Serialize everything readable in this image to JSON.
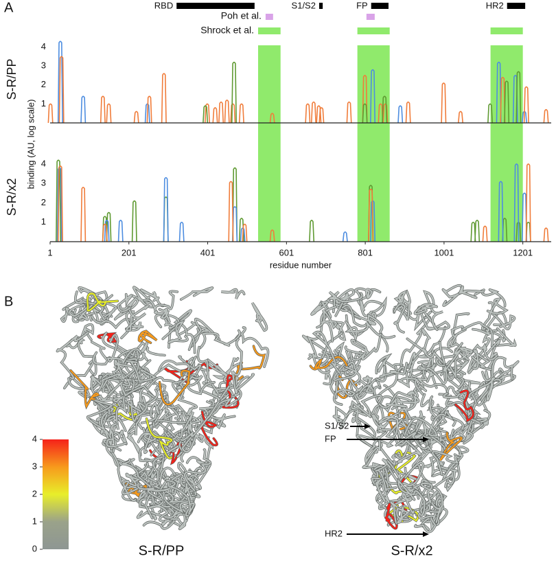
{
  "panel_labels": [
    "A",
    "B"
  ],
  "domains": [
    {
      "label": "RBD",
      "start": 322,
      "end": 520
    },
    {
      "label": "S1/S2",
      "start": 684,
      "end": 693
    },
    {
      "label": "FP",
      "start": 816,
      "end": 860
    },
    {
      "label": "HR2",
      "start": 1161,
      "end": 1207
    }
  ],
  "regions": [
    {
      "label": "Poh et al.",
      "color": "#d9a3e8",
      "spans": [
        [
          548,
          567
        ],
        [
          804,
          825
        ]
      ]
    },
    {
      "label": "Shrock et al.",
      "color": "#90ea6c",
      "spans": [
        [
          529,
          586
        ],
        [
          781,
          863
        ],
        [
          1119,
          1201
        ]
      ]
    }
  ],
  "chart_data": [
    {
      "type": "spike",
      "panel_label": "S-R/PP",
      "ylabel": "binding (AU, log scale)",
      "xlim": [
        1,
        1273
      ],
      "ylim": [
        0,
        4.6
      ],
      "yticks": [
        1,
        2,
        3,
        4
      ],
      "series": [
        {
          "color": "#4d8de0",
          "x": [
            27,
            85,
            248,
            820,
            890,
            1140,
            1182,
            1205
          ],
          "values": [
            4.3,
            1.4,
            1.0,
            2.8,
            0.9,
            3.2,
            2.5,
            0.6
          ]
        },
        {
          "color": "#f07c3a",
          "x": [
            2,
            30,
            135,
            150,
            220,
            253,
            290,
            400,
            420,
            435,
            450,
            465,
            487,
            565,
            655,
            670,
            683,
            690,
            760,
            800,
            840,
            852,
            910,
            1000,
            1043,
            1150,
            1210,
            1260
          ],
          "values": [
            1.0,
            3.5,
            1.4,
            1.0,
            0.6,
            1.4,
            2.6,
            1.0,
            0.8,
            1.1,
            1.2,
            1.0,
            1.0,
            0.5,
            1.0,
            1.1,
            0.9,
            0.8,
            1.1,
            2.5,
            1.0,
            1.0,
            1.1,
            2.1,
            0.6,
            2.4,
            1.9,
            0.7
          ]
        },
        {
          "color": "#5f9a32",
          "x": [
            395,
            468,
            800,
            850,
            1118,
            1160,
            1190
          ],
          "values": [
            0.9,
            3.2,
            1.0,
            1.4,
            1.0,
            2.2,
            2.7
          ]
        }
      ]
    },
    {
      "type": "spike",
      "panel_label": "S-R/x2",
      "xlabel": "residue number",
      "xlim": [
        1,
        1273
      ],
      "ylim": [
        0,
        4.6
      ],
      "yticks": [
        1,
        2,
        3,
        4
      ],
      "xticks": [
        1,
        201,
        401,
        601,
        801,
        1001,
        1201
      ],
      "series": [
        {
          "color": "#5f9a32",
          "x": [
            22,
            140,
            150,
            215,
            295,
            470,
            487,
            665,
            815,
            1075,
            1085,
            1155,
            1190,
            1215
          ],
          "values": [
            4.2,
            1.3,
            1.5,
            2.1,
            2.3,
            3.8,
            1.2,
            1.1,
            2.9,
            1.0,
            1.1,
            1.2,
            1.0,
            1.0
          ]
        },
        {
          "color": "#4d8de0",
          "x": [
            25,
            145,
            180,
            295,
            335,
            470,
            490,
            750,
            820,
            1145,
            1185,
            1205
          ],
          "values": [
            3.8,
            1.1,
            1.1,
            3.3,
            1.0,
            1.8,
            0.7,
            0.5,
            2.1,
            3.1,
            4.0,
            2.5
          ]
        },
        {
          "color": "#f07c3a",
          "x": [
            27,
            85,
            140,
            460,
            495,
            565,
            815,
            1105,
            1215,
            1260
          ],
          "values": [
            3.9,
            2.8,
            0.9,
            3.1,
            0.9,
            0.6,
            2.7,
            0.8,
            4.0,
            0.7
          ]
        }
      ]
    }
  ],
  "colorbar": {
    "ticks": [
      0,
      1,
      2,
      3,
      4
    ],
    "colors": [
      "#8e9693",
      "#9aa28a",
      "#e8ee2a",
      "#f79a1c",
      "#f5221a"
    ]
  },
  "structures": [
    {
      "label": "S-R/PP"
    },
    {
      "label": "S-R/x2",
      "arrows": [
        "S1/S2",
        "FP",
        "HR2"
      ]
    }
  ]
}
